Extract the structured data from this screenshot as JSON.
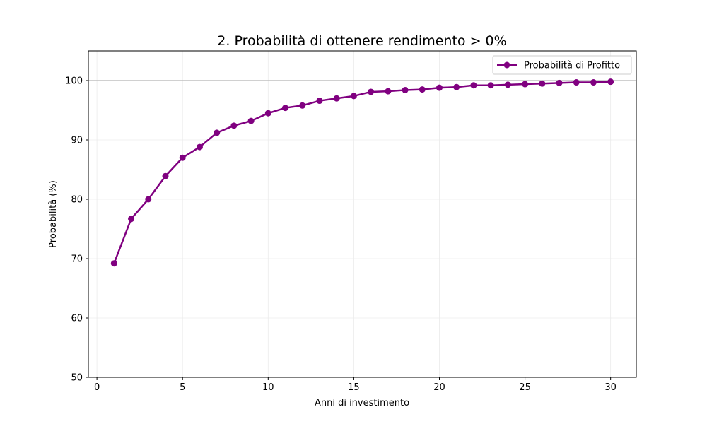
{
  "chart_data": {
    "type": "line",
    "title": "2. Probabilità di ottenere rendimento > 0%",
    "xlabel": "Anni di investimento",
    "ylabel": "Probabilità (%)",
    "xlim": [
      -0.5,
      31.5
    ],
    "ylim": [
      50,
      105
    ],
    "xticks": [
      0,
      5,
      10,
      15,
      20,
      25,
      30
    ],
    "yticks": [
      50,
      60,
      70,
      80,
      90,
      100
    ],
    "grid": true,
    "reference_line": {
      "y": 100,
      "color": "#c0c0c0"
    },
    "legend": {
      "position": "top-right"
    },
    "series": [
      {
        "name": "Probabilità di Profitto",
        "color": "#800080",
        "marker": "circle",
        "x": [
          1,
          2,
          3,
          4,
          5,
          6,
          7,
          8,
          9,
          10,
          11,
          12,
          13,
          14,
          15,
          16,
          17,
          18,
          19,
          20,
          21,
          22,
          23,
          24,
          25,
          26,
          27,
          28,
          29,
          30
        ],
        "y": [
          69.2,
          76.7,
          80.0,
          83.9,
          87.0,
          88.8,
          91.2,
          92.4,
          93.2,
          94.5,
          95.4,
          95.8,
          96.6,
          97.0,
          97.4,
          98.1,
          98.2,
          98.4,
          98.5,
          98.8,
          98.9,
          99.2,
          99.2,
          99.3,
          99.4,
          99.5,
          99.6,
          99.7,
          99.7,
          99.8
        ]
      }
    ]
  }
}
